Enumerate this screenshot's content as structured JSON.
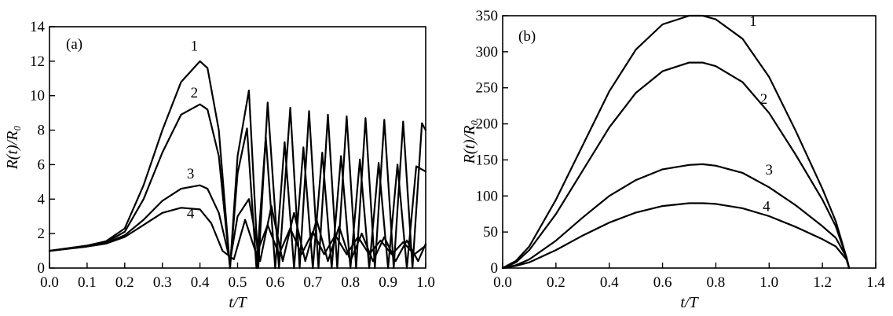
{
  "colors": {
    "ink": "#000000",
    "background": "#ffffff"
  },
  "chart_data": [
    {
      "type": "line",
      "panel_label": "(a)",
      "xlabel": "t/T",
      "ylabel": "R(t)/R₀",
      "xlim": [
        0,
        1.0
      ],
      "ylim": [
        0,
        14
      ],
      "x_ticks": [
        0,
        0.1,
        0.2,
        0.3,
        0.4,
        0.5,
        0.6,
        0.7,
        0.8,
        0.9,
        1.0
      ],
      "x_tick_labels": [
        "0.0",
        "0.1",
        "0.2",
        "0.3",
        "0.4",
        "0.5",
        "0.6",
        "0.7",
        "0.8",
        "0.9",
        "1.0"
      ],
      "y_ticks": [
        0,
        2,
        4,
        6,
        8,
        10,
        12,
        14
      ],
      "y_tick_labels": [
        "0",
        "2",
        "4",
        "6",
        "8",
        "10",
        "12",
        "14"
      ],
      "grid": false,
      "series": [
        {
          "name": "1",
          "x": [
            0,
            0.1,
            0.15,
            0.2,
            0.25,
            0.3,
            0.35,
            0.4,
            0.42,
            0.45,
            0.48,
            0.5,
            0.53,
            0.555,
            0.58,
            0.61,
            0.64,
            0.665,
            0.69,
            0.715,
            0.74,
            0.765,
            0.79,
            0.815,
            0.84,
            0.865,
            0.89,
            0.915,
            0.94,
            0.965,
            0.99,
            1.0
          ],
          "y": [
            1.0,
            1.3,
            1.55,
            2.3,
            4.8,
            8.0,
            10.8,
            12.0,
            11.6,
            8.0,
            0,
            6.5,
            10.3,
            0,
            9.6,
            0,
            9.3,
            0,
            9.1,
            0,
            8.9,
            0,
            8.8,
            0,
            8.7,
            0,
            8.6,
            0,
            8.5,
            0,
            8.4,
            8.0
          ]
        },
        {
          "name": "2",
          "x": [
            0,
            0.1,
            0.15,
            0.2,
            0.25,
            0.3,
            0.35,
            0.4,
            0.42,
            0.45,
            0.48,
            0.5,
            0.525,
            0.55,
            0.575,
            0.6,
            0.625,
            0.65,
            0.675,
            0.7,
            0.725,
            0.75,
            0.775,
            0.8,
            0.825,
            0.85,
            0.875,
            0.9,
            0.925,
            0.95,
            0.975,
            1.0
          ],
          "y": [
            1.0,
            1.3,
            1.5,
            2.1,
            4.0,
            6.7,
            8.9,
            9.5,
            9.2,
            6.5,
            0,
            5.5,
            8.1,
            0,
            7.6,
            0,
            7.3,
            0,
            7.0,
            0,
            6.7,
            0,
            6.5,
            0,
            6.3,
            0,
            6.1,
            0,
            6.0,
            0,
            5.9,
            5.6
          ]
        },
        {
          "name": "3",
          "x": [
            0,
            0.1,
            0.15,
            0.2,
            0.25,
            0.3,
            0.35,
            0.4,
            0.42,
            0.45,
            0.48,
            0.5,
            0.53,
            0.56,
            0.59,
            0.62,
            0.65,
            0.68,
            0.71,
            0.74,
            0.77,
            0.8,
            0.83,
            0.86,
            0.89,
            0.92,
            0.95,
            0.98,
            1.0
          ],
          "y": [
            1.0,
            1.25,
            1.45,
            1.9,
            2.8,
            3.9,
            4.6,
            4.8,
            4.6,
            3.2,
            0.4,
            3.0,
            4.0,
            0.4,
            3.6,
            0.4,
            3.2,
            0.4,
            2.8,
            0.4,
            2.4,
            0.4,
            2.0,
            0.4,
            1.8,
            0.4,
            1.6,
            0.4,
            1.4
          ]
        },
        {
          "name": "4",
          "x": [
            0,
            0.1,
            0.15,
            0.2,
            0.25,
            0.3,
            0.35,
            0.4,
            0.43,
            0.46,
            0.49,
            0.52,
            0.55,
            0.58,
            0.61,
            0.64,
            0.67,
            0.7,
            0.73,
            0.76,
            0.79,
            0.82,
            0.85,
            0.88,
            0.91,
            0.94,
            0.97,
            1.0
          ],
          "y": [
            1.0,
            1.25,
            1.42,
            1.8,
            2.5,
            3.2,
            3.5,
            3.4,
            2.6,
            1.0,
            0.5,
            2.8,
            0.8,
            2.5,
            0.8,
            2.3,
            0.8,
            2.1,
            0.8,
            1.9,
            0.8,
            1.8,
            0.8,
            1.6,
            0.8,
            1.5,
            0.8,
            1.3
          ]
        }
      ],
      "curve_labels": [
        {
          "text": "1",
          "x": 0.385,
          "y": 12.6
        },
        {
          "text": "2",
          "x": 0.385,
          "y": 9.9
        },
        {
          "text": "3",
          "x": 0.375,
          "y": 5.2
        },
        {
          "text": "4",
          "x": 0.375,
          "y": 2.9
        }
      ]
    },
    {
      "type": "line",
      "panel_label": "(b)",
      "xlabel": "t/T",
      "ylabel": "R(t)/R₀",
      "xlim": [
        0,
        1.4
      ],
      "ylim": [
        0,
        350
      ],
      "x_ticks": [
        0,
        0.2,
        0.4,
        0.6,
        0.8,
        1.0,
        1.2,
        1.4
      ],
      "x_tick_labels": [
        "0.0",
        "0.2",
        "0.4",
        "0.6",
        "0.8",
        "1.0",
        "1.2",
        "1.4"
      ],
      "y_ticks": [
        0,
        50,
        100,
        150,
        200,
        250,
        300,
        350
      ],
      "y_tick_labels": [
        "0",
        "50",
        "100",
        "150",
        "200",
        "250",
        "300",
        "350"
      ],
      "grid": false,
      "series": [
        {
          "name": "1",
          "x": [
            0,
            0.05,
            0.1,
            0.2,
            0.3,
            0.4,
            0.5,
            0.6,
            0.7,
            0.75,
            0.8,
            0.9,
            1.0,
            1.1,
            1.2,
            1.25,
            1.29,
            1.3
          ],
          "y": [
            0,
            10,
            30,
            95,
            170,
            245,
            303,
            338,
            350,
            350,
            345,
            318,
            265,
            190,
            110,
            65,
            15,
            0
          ]
        },
        {
          "name": "2",
          "x": [
            0,
            0.05,
            0.1,
            0.2,
            0.3,
            0.4,
            0.5,
            0.6,
            0.7,
            0.75,
            0.8,
            0.9,
            1.0,
            1.1,
            1.2,
            1.25,
            1.29,
            1.3
          ],
          "y": [
            0,
            8,
            25,
            75,
            135,
            195,
            243,
            273,
            285,
            285,
            280,
            258,
            215,
            157,
            95,
            58,
            15,
            0
          ]
        },
        {
          "name": "3",
          "x": [
            0,
            0.05,
            0.1,
            0.2,
            0.3,
            0.4,
            0.5,
            0.6,
            0.7,
            0.75,
            0.8,
            0.9,
            1.0,
            1.1,
            1.2,
            1.25,
            1.29,
            1.3
          ],
          "y": [
            0,
            4,
            12,
            38,
            70,
            100,
            122,
            137,
            143,
            144,
            142,
            132,
            112,
            87,
            58,
            42,
            15,
            0
          ]
        },
        {
          "name": "4",
          "x": [
            0,
            0.05,
            0.1,
            0.2,
            0.3,
            0.4,
            0.5,
            0.6,
            0.7,
            0.75,
            0.8,
            0.9,
            1.0,
            1.1,
            1.2,
            1.25,
            1.29,
            1.3
          ],
          "y": [
            0,
            3,
            8,
            25,
            45,
            63,
            77,
            86,
            90,
            90,
            89,
            83,
            72,
            57,
            40,
            30,
            12,
            0
          ]
        }
      ],
      "curve_labels": [
        {
          "text": "1",
          "x": 0.94,
          "y": 336
        },
        {
          "text": "2",
          "x": 0.98,
          "y": 228
        },
        {
          "text": "3",
          "x": 1.0,
          "y": 130
        },
        {
          "text": "4",
          "x": 0.99,
          "y": 79
        }
      ]
    }
  ]
}
